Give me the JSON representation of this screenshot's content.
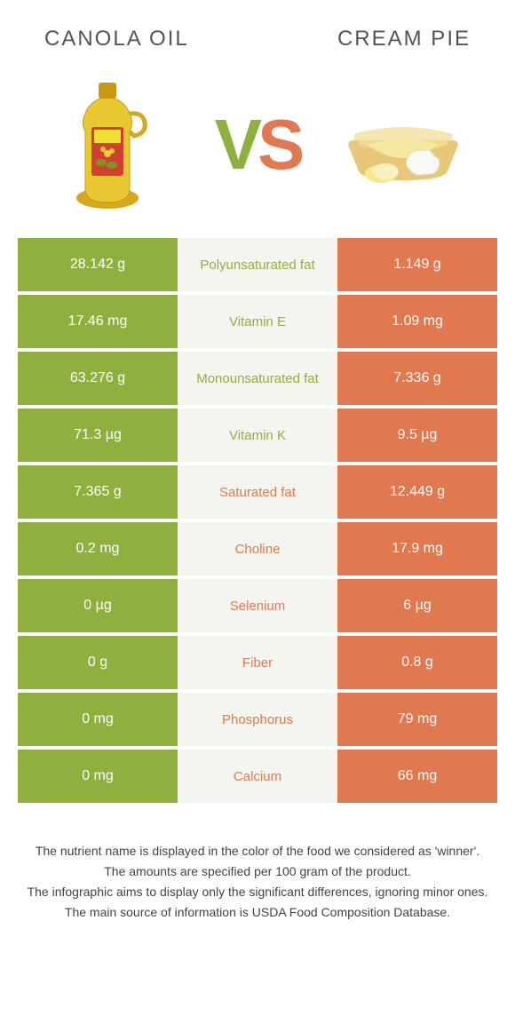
{
  "colors": {
    "left": "#8fb03e",
    "right": "#e07850",
    "mid_bg": "#f5f5f0"
  },
  "header": {
    "left_title": "Canola oil",
    "right_title": "Cream pie"
  },
  "vs": {
    "v": "V",
    "s": "S"
  },
  "rows": [
    {
      "left": "28.142 g",
      "label": "Polyunsaturated fat",
      "right": "1.149 g",
      "winner": "left"
    },
    {
      "left": "17.46 mg",
      "label": "Vitamin E",
      "right": "1.09 mg",
      "winner": "left"
    },
    {
      "left": "63.276 g",
      "label": "Monounsaturated fat",
      "right": "7.336 g",
      "winner": "left"
    },
    {
      "left": "71.3 µg",
      "label": "Vitamin K",
      "right": "9.5 µg",
      "winner": "left"
    },
    {
      "left": "7.365 g",
      "label": "Saturated fat",
      "right": "12.449 g",
      "winner": "right"
    },
    {
      "left": "0.2 mg",
      "label": "Choline",
      "right": "17.9 mg",
      "winner": "right"
    },
    {
      "left": "0 µg",
      "label": "Selenium",
      "right": "6 µg",
      "winner": "right"
    },
    {
      "left": "0 g",
      "label": "Fiber",
      "right": "0.8 g",
      "winner": "right"
    },
    {
      "left": "0 mg",
      "label": "Phosphorus",
      "right": "79 mg",
      "winner": "right"
    },
    {
      "left": "0 mg",
      "label": "Calcium",
      "right": "66 mg",
      "winner": "right"
    }
  ],
  "footer": {
    "l1": "The nutrient name is displayed in the color of the food we considered as 'winner'.",
    "l2": "The amounts are specified per 100 gram of the product.",
    "l3": "The infographic aims to display only the significant differences, ignoring minor ones.",
    "l4": "The main source of information is USDA Food Composition Database."
  }
}
